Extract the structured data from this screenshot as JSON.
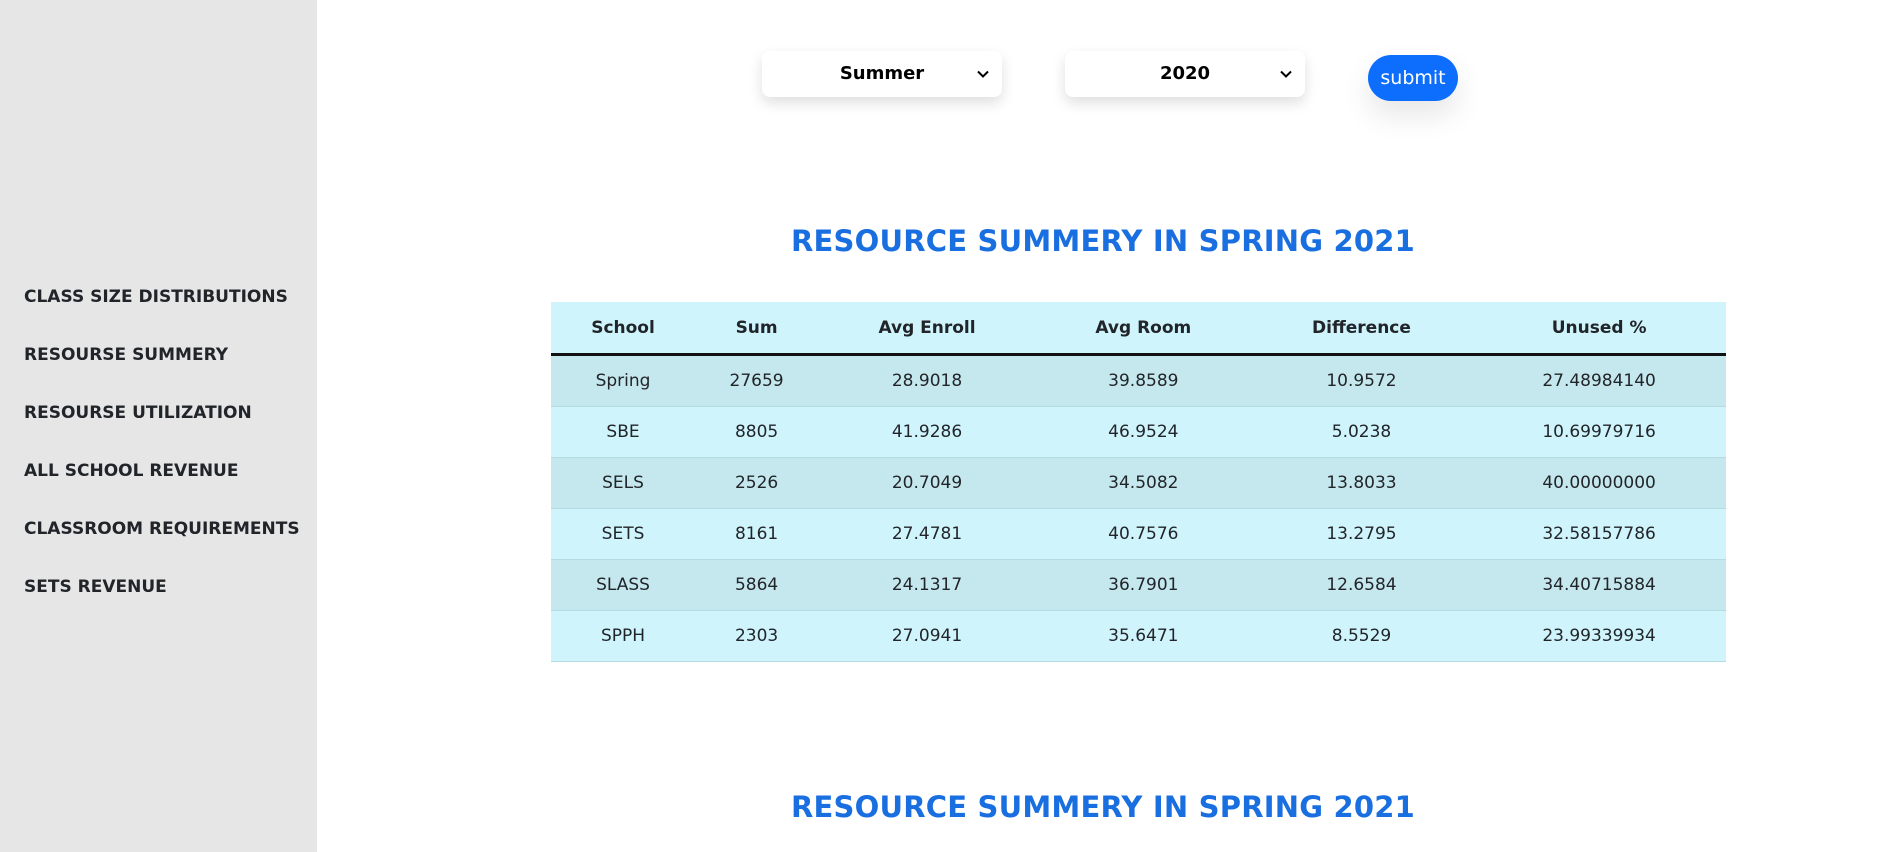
{
  "sidebar": {
    "items": [
      {
        "label": "CLASS SIZE DISTRIBUTIONS"
      },
      {
        "label": "RESOURSE SUMMERY"
      },
      {
        "label": "RESOURSE UTILIZATION"
      },
      {
        "label": "ALL SCHOOL REVENUE"
      },
      {
        "label": "CLASSROOM REQUIREMENTS"
      },
      {
        "label": "SETS REVENUE"
      }
    ]
  },
  "filters": {
    "semester": "Summer",
    "year": "2020",
    "submit_label": "submit"
  },
  "sections": [
    {
      "title": "RESOURCE SUMMERY IN SPRING 2021"
    },
    {
      "title": "RESOURCE SUMMERY IN SPRING 2021"
    }
  ],
  "table": {
    "headers": [
      "School",
      "Sum",
      "Avg Enroll",
      "Avg Room",
      "Difference",
      "Unused %"
    ],
    "rows": [
      [
        "Spring",
        "27659",
        "28.9018",
        "39.8589",
        "10.9572",
        "27.48984140"
      ],
      [
        "SBE",
        "8805",
        "41.9286",
        "46.9524",
        "5.0238",
        "10.69979716"
      ],
      [
        "SELS",
        "2526",
        "20.7049",
        "34.5082",
        "13.8033",
        "40.00000000"
      ],
      [
        "SETS",
        "8161",
        "27.4781",
        "40.7576",
        "13.2795",
        "32.58157786"
      ],
      [
        "SLASS",
        "5864",
        "24.1317",
        "36.7901",
        "12.6584",
        "34.40715884"
      ],
      [
        "SPPH",
        "2303",
        "27.0941",
        "35.6471",
        "8.5529",
        "23.99339934"
      ]
    ]
  },
  "colors": {
    "accent": "#1a6fe0",
    "button": "#0d6efd",
    "sidebar_bg": "#e6e6e6",
    "table_row": "#cff4fc",
    "table_row_alt": "#c5e8ee"
  }
}
